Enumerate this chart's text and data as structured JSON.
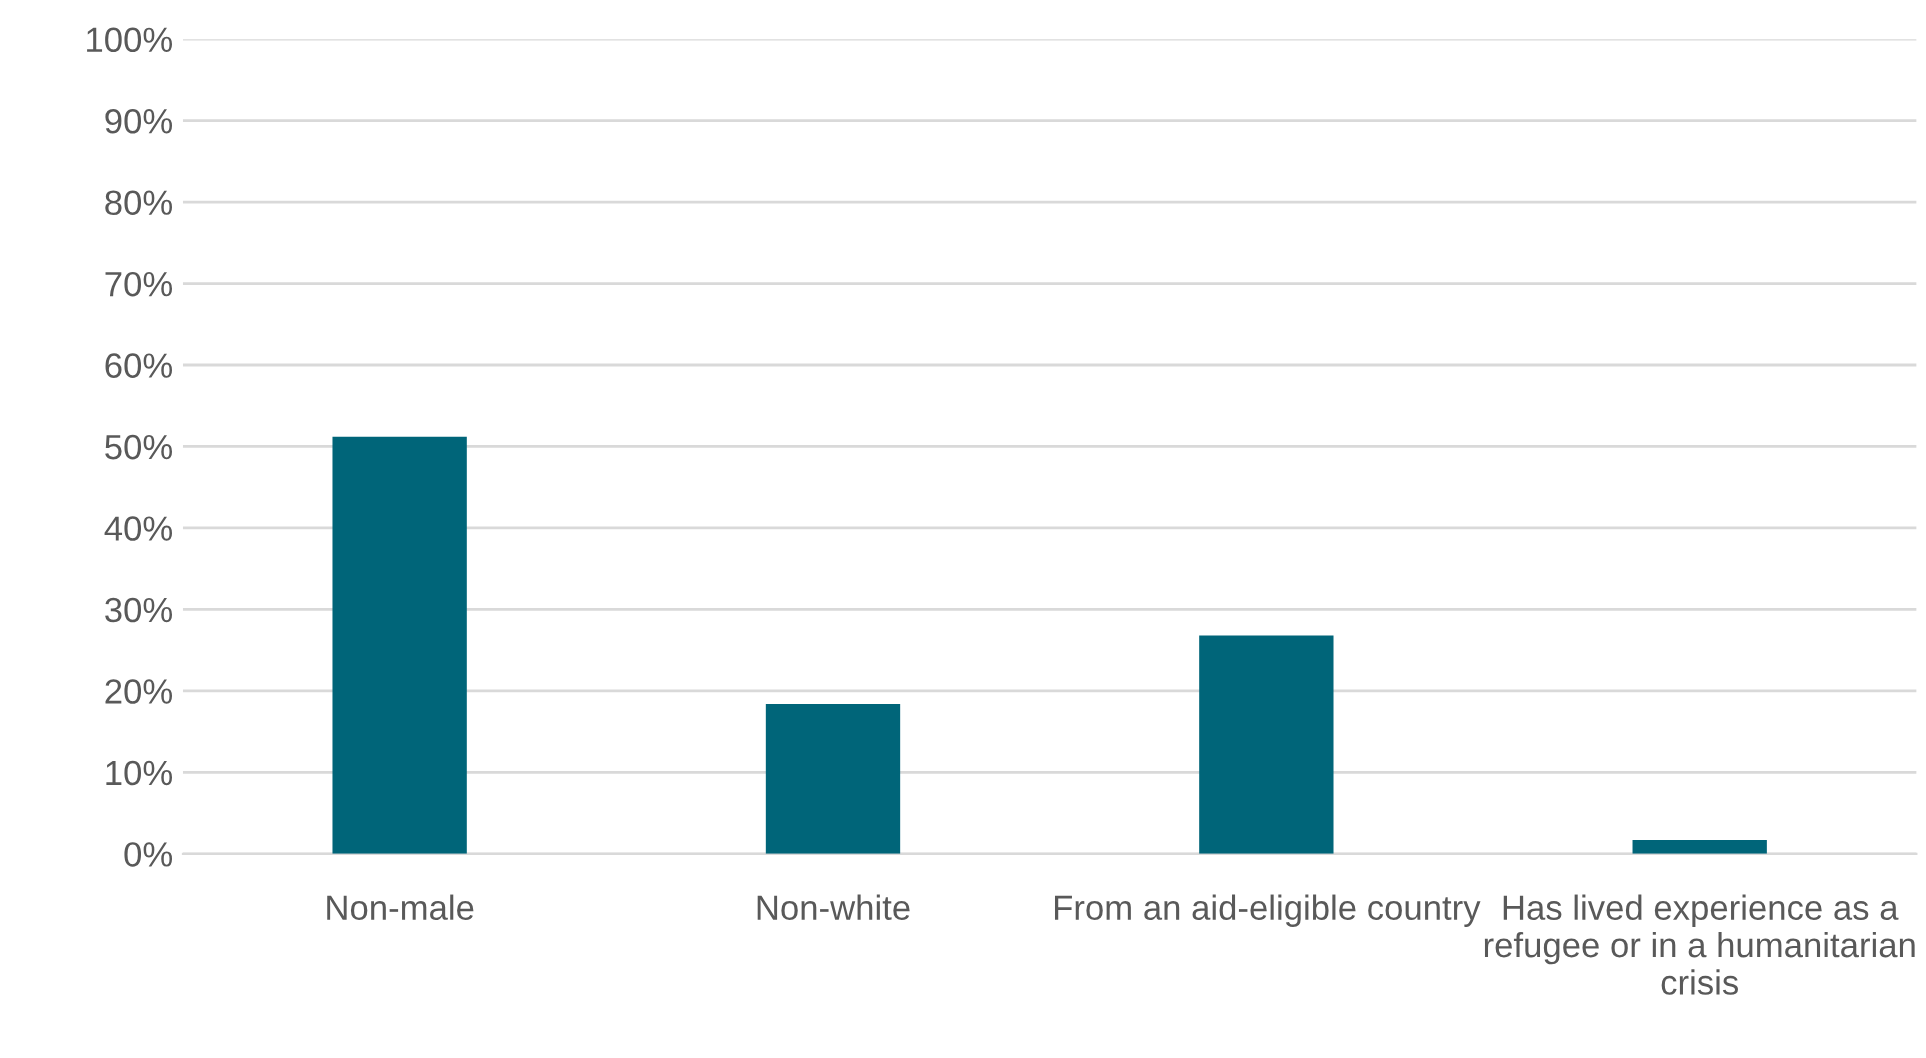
{
  "chart_data": {
    "type": "bar",
    "categories": [
      "Non-male",
      "Non-white",
      "From an aid-eligible country",
      "Has lived experience as a refugee or in a humanitarian crisis"
    ],
    "values": [
      51.2,
      18.4,
      26.8,
      1.7
    ],
    "color": "#006579",
    "ylim": [
      0,
      100
    ],
    "yticks": [
      {
        "value": 0,
        "label": "0%"
      },
      {
        "value": 10,
        "label": "10%"
      },
      {
        "value": 20,
        "label": "20%"
      },
      {
        "value": 30,
        "label": "30%"
      },
      {
        "value": 40,
        "label": "40%"
      },
      {
        "value": 50,
        "label": "50%"
      },
      {
        "value": 60,
        "label": "60%"
      },
      {
        "value": 70,
        "label": "70%"
      },
      {
        "value": 80,
        "label": "80%"
      },
      {
        "value": 90,
        "label": "90%"
      },
      {
        "value": 100,
        "label": "100%"
      }
    ],
    "grid": "y",
    "legend": false
  }
}
